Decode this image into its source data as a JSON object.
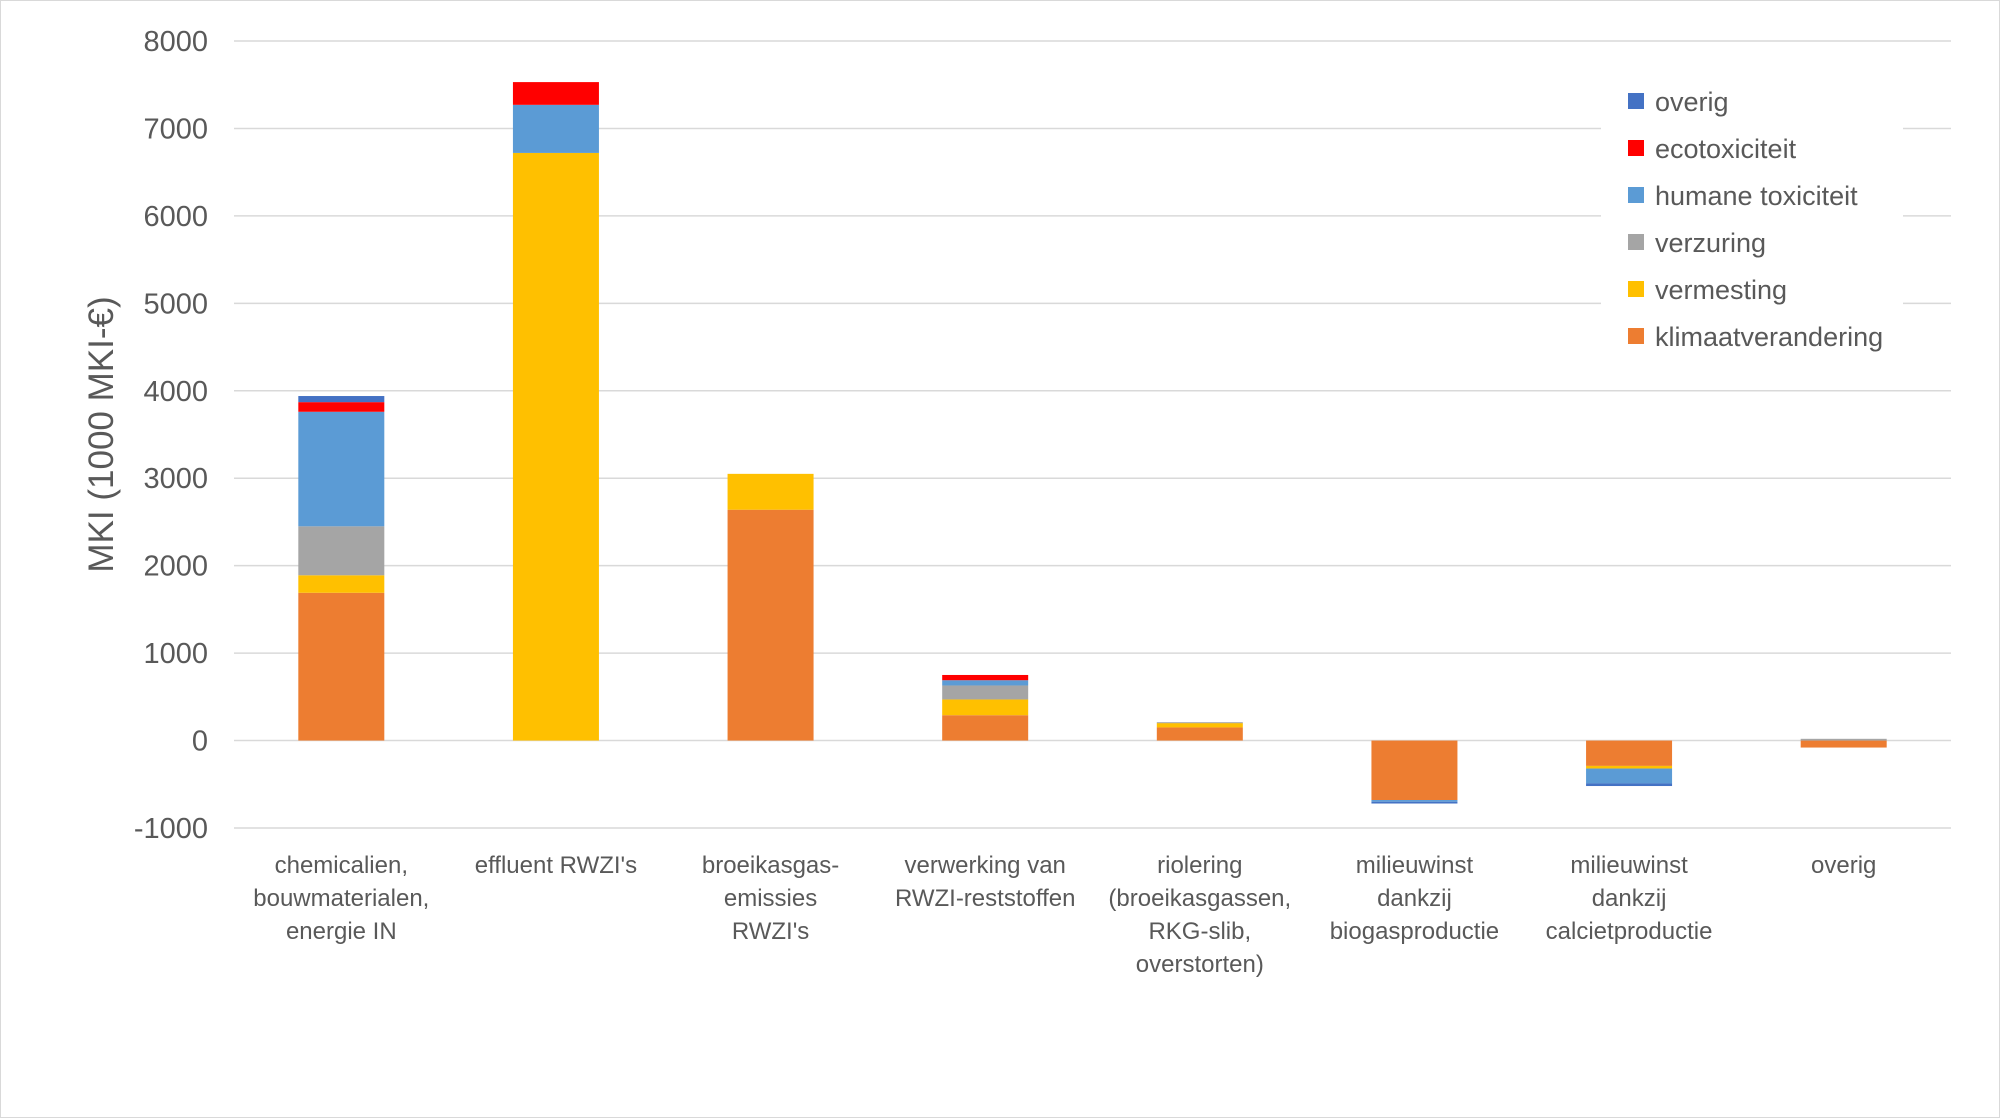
{
  "chart_data": {
    "type": "bar",
    "stacked": true,
    "title": "",
    "xlabel": "",
    "ylabel": "MKI (1000 MKI-€)",
    "ylim": [
      -1000,
      8000
    ],
    "yticks": [
      -1000,
      0,
      1000,
      2000,
      3000,
      4000,
      5000,
      6000,
      7000,
      8000
    ],
    "grid": "horizontal",
    "legend_position": "top-right",
    "categories": [
      [
        "chemicalien,",
        "bouwmaterialen,",
        "energie IN"
      ],
      [
        "effluent RWZI's"
      ],
      [
        "broeikasgas-",
        "emissies",
        "RWZI's"
      ],
      [
        "verwerking van",
        "RWZI-reststoffen"
      ],
      [
        "riolering",
        "(broeikasgassen,",
        "RKG-slib,",
        "overstorten)"
      ],
      [
        "milieuwinst",
        "dankzij",
        "biogasproductie"
      ],
      [
        "milieuwinst",
        "dankzij",
        "calcietproductie"
      ],
      [
        "overig"
      ]
    ],
    "series": [
      {
        "name": "klimaatverandering",
        "color": "#ED7D31",
        "values": [
          1690,
          0,
          2640,
          290,
          150,
          -680,
          -290,
          -80
        ]
      },
      {
        "name": "vermesting",
        "color": "#FFC000",
        "values": [
          200,
          6720,
          410,
          180,
          50,
          0,
          -30,
          0
        ]
      },
      {
        "name": "verzuring",
        "color": "#A5A5A5",
        "values": [
          560,
          0,
          0,
          160,
          10,
          0,
          0,
          20
        ]
      },
      {
        "name": "humane toxiciteit",
        "color": "#5B9BD5",
        "values": [
          1310,
          550,
          0,
          60,
          0,
          -20,
          -170,
          0
        ]
      },
      {
        "name": "ecotoxiciteit",
        "color": "#FF0000",
        "values": [
          110,
          260,
          0,
          60,
          0,
          0,
          0,
          0
        ]
      },
      {
        "name": "overig",
        "color": "#4472C4",
        "values": [
          70,
          0,
          0,
          0,
          0,
          -20,
          -30,
          0
        ]
      }
    ],
    "legend_order": [
      "overig",
      "ecotoxiciteit",
      "humane toxiciteit",
      "verzuring",
      "vermesting",
      "klimaatverandering"
    ]
  }
}
